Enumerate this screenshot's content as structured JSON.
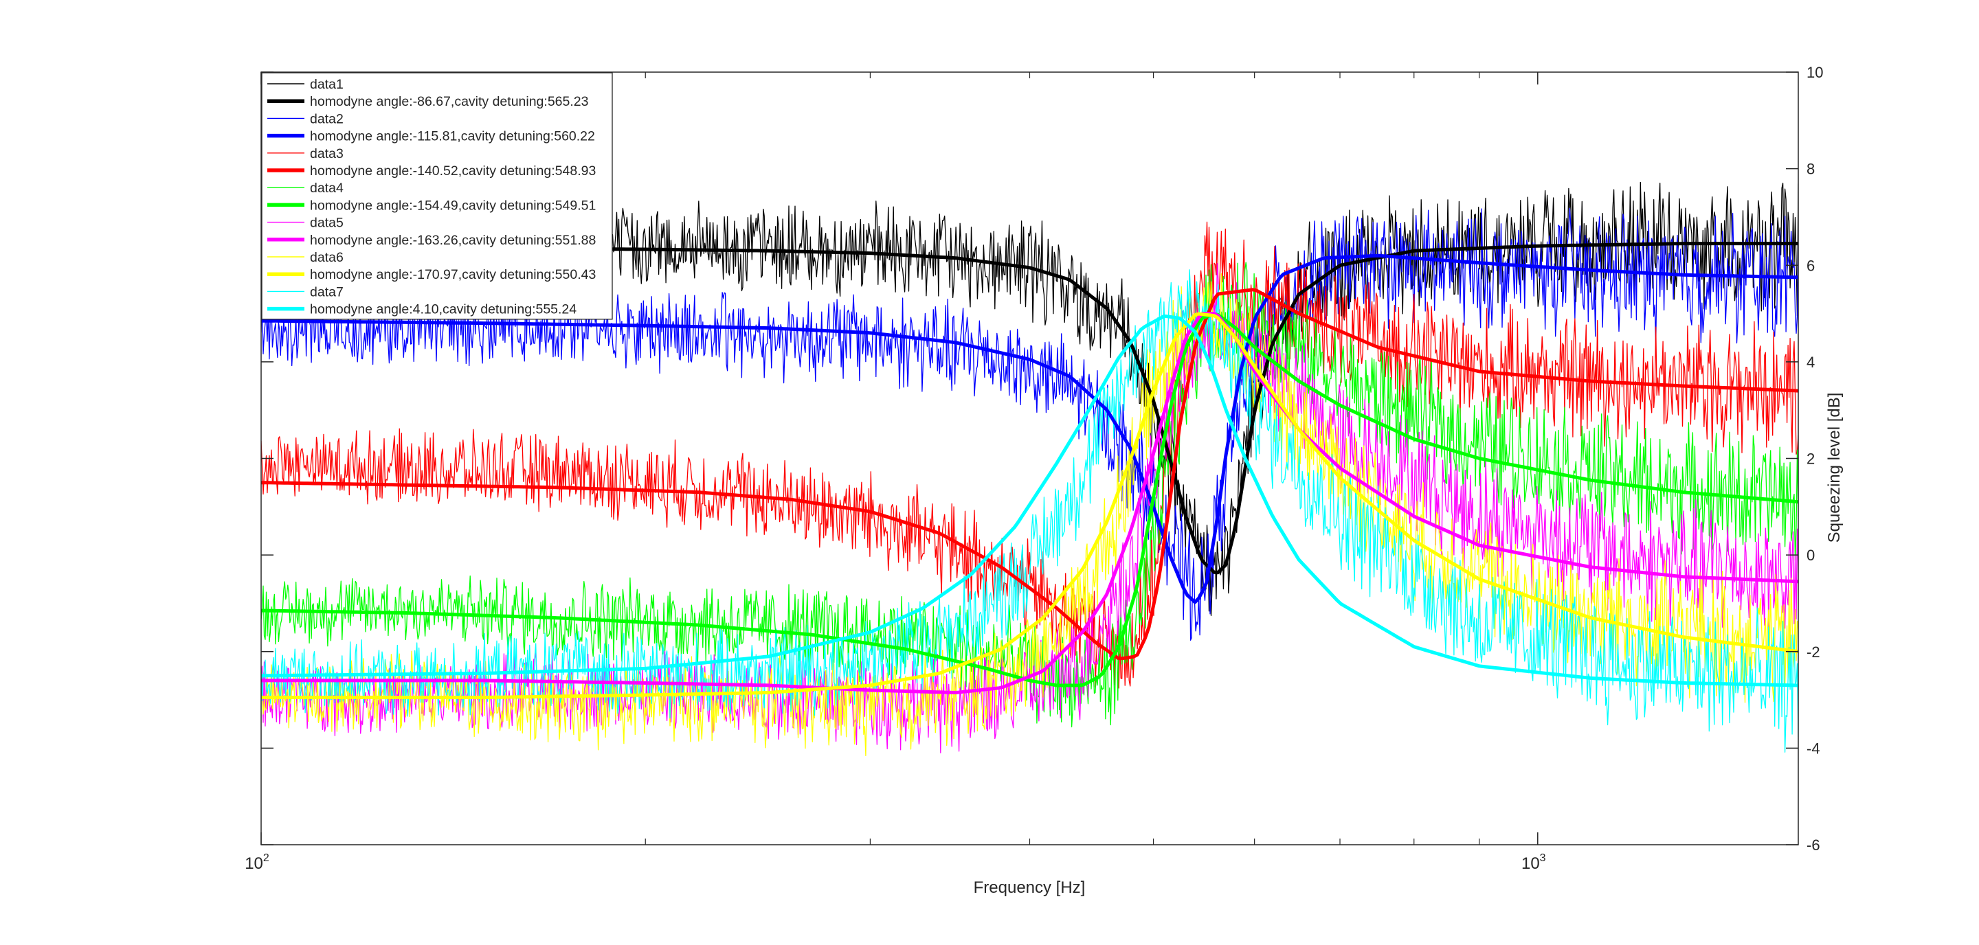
{
  "chart_data": {
    "type": "line",
    "title": "",
    "xlabel": "Frequency [Hz]",
    "ylabel": "Squeezing level [dB]",
    "x_scale": "log",
    "xlim": [
      100,
      1600
    ],
    "ylim": [
      -6,
      10
    ],
    "x_ticks": [
      100,
      1000
    ],
    "x_tick_labels": [
      {
        "base": "10",
        "exp": "2"
      },
      {
        "base": "10",
        "exp": "3"
      }
    ],
    "y_ticks": [
      -6,
      -4,
      -2,
      0,
      2,
      4,
      6,
      8,
      10
    ],
    "y_tick_labels": [
      "-6",
      "-4",
      "-2",
      "0",
      "2",
      "4",
      "6",
      "8",
      "10"
    ],
    "y_axis_location": "right",
    "grid": false,
    "legend_placement": "top-left",
    "legend": [
      {
        "label": "data1",
        "color": "#000000",
        "width": "thin"
      },
      {
        "label": "homodyne angle:-86.67,cavity detuning:565.23",
        "color": "#000000",
        "width": "thick"
      },
      {
        "label": "data2",
        "color": "#0000ff",
        "width": "thin"
      },
      {
        "label": "homodyne angle:-115.81,cavity detuning:560.22",
        "color": "#0000ff",
        "width": "thick"
      },
      {
        "label": "data3",
        "color": "#ff0000",
        "width": "thin"
      },
      {
        "label": "homodyne angle:-140.52,cavity detuning:548.93",
        "color": "#ff0000",
        "width": "thick"
      },
      {
        "label": "data4",
        "color": "#00ff00",
        "width": "thin"
      },
      {
        "label": "homodyne angle:-154.49,cavity detuning:549.51",
        "color": "#00ff00",
        "width": "thick"
      },
      {
        "label": "data5",
        "color": "#ff00ff",
        "width": "thin"
      },
      {
        "label": "homodyne angle:-163.26,cavity detuning:551.88",
        "color": "#ff00ff",
        "width": "thick"
      },
      {
        "label": "data6",
        "color": "#ffff00",
        "width": "thin"
      },
      {
        "label": "homodyne angle:-170.97,cavity detuning:550.43",
        "color": "#ffff00",
        "width": "thick"
      },
      {
        "label": "data7",
        "color": "#00ffff",
        "width": "thin"
      },
      {
        "label": "homodyne angle:4.10,cavity detuning:555.24",
        "color": "#00ffff",
        "width": "thick"
      }
    ],
    "series": [
      {
        "name": "data1",
        "color": "#000000",
        "kind": "measured",
        "x": [
          100,
          130,
          170,
          220,
          300,
          400,
          470,
          510,
          535,
          550,
          565,
          580,
          600,
          650,
          800,
          1000,
          1300,
          1600
        ],
        "y": [
          6.2,
          6.3,
          6.4,
          6.4,
          6.3,
          6.0,
          4.8,
          2.2,
          0.3,
          -0.2,
          -0.4,
          0.8,
          3.5,
          5.6,
          6.3,
          6.4,
          6.4,
          6.4
        ]
      },
      {
        "name": "homodyne angle:-86.67,cavity detuning:565.23",
        "color": "#000000",
        "kind": "fit",
        "x": [
          100,
          150,
          200,
          250,
          300,
          350,
          400,
          430,
          460,
          480,
          500,
          515,
          530,
          545,
          560,
          570,
          580,
          590,
          600,
          620,
          650,
          700,
          800,
          1000,
          1300,
          1600
        ],
        "y": [
          6.35,
          6.35,
          6.33,
          6.3,
          6.25,
          6.15,
          5.95,
          5.7,
          5.1,
          4.4,
          3.2,
          2.0,
          0.8,
          -0.1,
          -0.4,
          -0.2,
          0.6,
          1.8,
          3.0,
          4.4,
          5.4,
          6.0,
          6.3,
          6.4,
          6.45,
          6.45
        ]
      },
      {
        "name": "data2",
        "color": "#0000ff",
        "kind": "measured",
        "x": [
          100,
          130,
          170,
          220,
          300,
          380,
          440,
          480,
          510,
          530,
          545,
          560,
          580,
          620,
          700,
          900,
          1200,
          1600
        ],
        "y": [
          4.6,
          4.7,
          4.8,
          4.6,
          4.5,
          4.1,
          3.3,
          2.0,
          0.6,
          -0.5,
          -0.9,
          0.5,
          2.8,
          5.2,
          6.0,
          5.9,
          5.8,
          5.7
        ]
      },
      {
        "name": "homodyne angle:-115.81,cavity detuning:560.22",
        "color": "#0000ff",
        "kind": "fit",
        "x": [
          100,
          150,
          200,
          250,
          300,
          350,
          400,
          430,
          460,
          480,
          500,
          515,
          530,
          540,
          550,
          560,
          570,
          585,
          600,
          630,
          680,
          750,
          900,
          1100,
          1300,
          1600
        ],
        "y": [
          4.85,
          4.8,
          4.75,
          4.7,
          4.6,
          4.4,
          4.05,
          3.7,
          3.0,
          2.2,
          1.0,
          0.0,
          -0.8,
          -1.0,
          -0.6,
          0.6,
          2.1,
          3.8,
          4.9,
          5.8,
          6.15,
          6.2,
          6.05,
          5.9,
          5.8,
          5.75
        ]
      },
      {
        "name": "data3",
        "color": "#ff0000",
        "kind": "measured",
        "x": [
          100,
          130,
          170,
          220,
          300,
          380,
          440,
          480,
          500,
          520,
          540,
          560,
          600,
          700,
          900,
          1200,
          1600
        ],
        "y": [
          1.9,
          1.8,
          1.7,
          1.4,
          0.8,
          -0.3,
          -1.5,
          -2.0,
          -0.5,
          3.0,
          5.5,
          6.0,
          5.3,
          4.6,
          3.9,
          3.6,
          3.4
        ]
      },
      {
        "name": "homodyne angle:-140.52,cavity detuning:548.93",
        "color": "#ff0000",
        "kind": "fit",
        "x": [
          100,
          130,
          170,
          220,
          260,
          300,
          340,
          380,
          420,
          450,
          470,
          485,
          495,
          505,
          515,
          525,
          540,
          560,
          600,
          650,
          750,
          900,
          1100,
          1300,
          1600
        ],
        "y": [
          1.5,
          1.45,
          1.4,
          1.3,
          1.15,
          0.9,
          0.45,
          -0.25,
          -1.1,
          -1.8,
          -2.15,
          -2.1,
          -1.6,
          -0.5,
          1.1,
          2.8,
          4.4,
          5.4,
          5.5,
          5.0,
          4.3,
          3.8,
          3.6,
          3.5,
          3.4
        ]
      },
      {
        "name": "data4",
        "color": "#00ff00",
        "kind": "measured",
        "x": [
          100,
          130,
          170,
          220,
          300,
          380,
          430,
          460,
          490,
          520,
          550,
          600,
          700,
          900,
          1200,
          1600
        ],
        "y": [
          -1.2,
          -1.1,
          -1.3,
          -1.4,
          -1.6,
          -2.1,
          -2.7,
          -2.6,
          -1.2,
          2.6,
          5.0,
          4.9,
          3.6,
          2.3,
          1.5,
          1.1
        ]
      },
      {
        "name": "homodyne angle:-154.49,cavity detuning:549.51",
        "color": "#00ff00",
        "kind": "fit",
        "x": [
          100,
          130,
          170,
          220,
          270,
          320,
          370,
          400,
          420,
          440,
          455,
          470,
          485,
          500,
          515,
          530,
          545,
          560,
          580,
          600,
          650,
          700,
          800,
          900,
          1100,
          1300,
          1600
        ],
        "y": [
          -1.15,
          -1.2,
          -1.3,
          -1.45,
          -1.65,
          -1.95,
          -2.35,
          -2.6,
          -2.7,
          -2.7,
          -2.5,
          -1.9,
          -0.7,
          1.2,
          3.0,
          4.3,
          4.9,
          5.0,
          4.7,
          4.3,
          3.6,
          3.1,
          2.4,
          2.0,
          1.55,
          1.3,
          1.1
        ]
      },
      {
        "name": "data5",
        "color": "#ff00ff",
        "kind": "measured",
        "x": [
          100,
          130,
          170,
          220,
          300,
          360,
          400,
          440,
          480,
          520,
          560,
          600,
          700,
          900,
          1200,
          1600
        ],
        "y": [
          -2.9,
          -3.0,
          -2.8,
          -2.9,
          -3.0,
          -3.1,
          -2.8,
          -2.3,
          -0.2,
          3.6,
          4.9,
          4.2,
          2.5,
          0.8,
          -0.1,
          -0.5
        ]
      },
      {
        "name": "homodyne angle:-163.26,cavity detuning:551.88",
        "color": "#ff00ff",
        "kind": "fit",
        "x": [
          100,
          150,
          200,
          250,
          300,
          350,
          380,
          410,
          440,
          460,
          480,
          500,
          515,
          530,
          545,
          560,
          580,
          600,
          650,
          700,
          800,
          900,
          1100,
          1300,
          1600
        ],
        "y": [
          -2.6,
          -2.6,
          -2.65,
          -2.7,
          -2.8,
          -2.85,
          -2.75,
          -2.4,
          -1.6,
          -0.8,
          0.5,
          2.1,
          3.4,
          4.5,
          5.0,
          5.0,
          4.5,
          3.8,
          2.6,
          1.8,
          0.8,
          0.2,
          -0.25,
          -0.45,
          -0.55
        ]
      },
      {
        "name": "data6",
        "color": "#ffff00",
        "kind": "measured",
        "x": [
          100,
          130,
          170,
          220,
          300,
          360,
          420,
          460,
          500,
          540,
          580,
          650,
          800,
          1000,
          1300,
          1600
        ],
        "y": [
          -3.0,
          -2.8,
          -3.2,
          -3.0,
          -3.1,
          -2.9,
          -1.8,
          0.2,
          3.5,
          5.0,
          4.4,
          2.6,
          0.3,
          -1.0,
          -1.6,
          -1.8
        ]
      },
      {
        "name": "homodyne angle:-170.97,cavity detuning:550.43",
        "color": "#ffff00",
        "kind": "fit",
        "x": [
          100,
          150,
          200,
          250,
          300,
          340,
          380,
          410,
          440,
          460,
          480,
          500,
          520,
          540,
          560,
          580,
          600,
          650,
          700,
          800,
          900,
          1100,
          1300,
          1600
        ],
        "y": [
          -2.95,
          -2.95,
          -2.9,
          -2.85,
          -2.7,
          -2.45,
          -1.95,
          -1.3,
          -0.3,
          0.7,
          2.0,
          3.4,
          4.5,
          5.0,
          4.95,
          4.5,
          3.9,
          2.6,
          1.6,
          0.3,
          -0.5,
          -1.3,
          -1.7,
          -2.0
        ]
      },
      {
        "name": "data7",
        "color": "#00ffff",
        "kind": "measured",
        "x": [
          100,
          130,
          170,
          220,
          300,
          360,
          400,
          440,
          480,
          520,
          560,
          620,
          700,
          900,
          1200,
          1600
        ],
        "y": [
          -2.5,
          -2.6,
          -2.4,
          -2.5,
          -2.2,
          -1.4,
          -0.2,
          1.6,
          3.9,
          5.2,
          4.6,
          2.5,
          0.8,
          -1.4,
          -2.3,
          -2.7
        ]
      },
      {
        "name": "homodyne angle:4.10,cavity detuning:555.24",
        "color": "#00ffff",
        "kind": "fit",
        "x": [
          100,
          150,
          200,
          250,
          300,
          330,
          360,
          390,
          420,
          445,
          470,
          490,
          510,
          525,
          540,
          555,
          570,
          590,
          620,
          650,
          700,
          800,
          900,
          1100,
          1300,
          1600
        ],
        "y": [
          -2.5,
          -2.45,
          -2.35,
          -2.1,
          -1.6,
          -1.1,
          -0.4,
          0.6,
          1.9,
          3.0,
          4.1,
          4.7,
          4.95,
          4.9,
          4.6,
          3.9,
          3.0,
          2.0,
          0.8,
          -0.1,
          -1.0,
          -1.9,
          -2.3,
          -2.55,
          -2.65,
          -2.7
        ]
      }
    ]
  }
}
